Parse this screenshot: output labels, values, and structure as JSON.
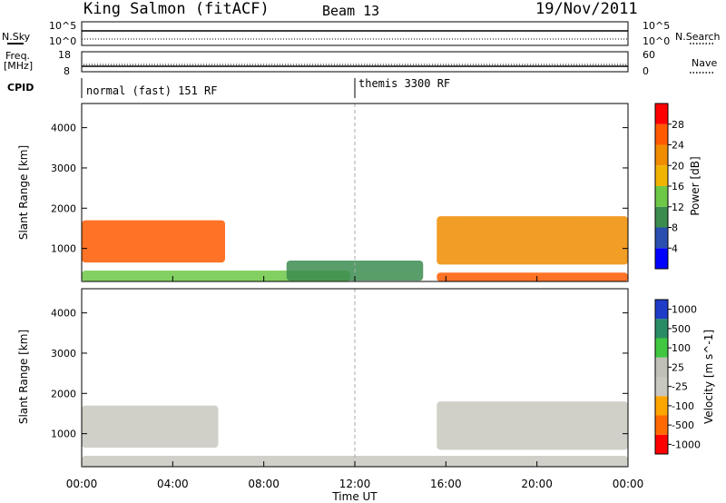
{
  "header": {
    "station": "King Salmon (fitACF)",
    "beam": "Beam 13",
    "date": "19/Nov/2011"
  },
  "panels": {
    "nsky": {
      "left_label": "N.Sky",
      "right_label": "N.Search",
      "left_ticks": [
        "10^5",
        "10^0"
      ],
      "right_ticks": [
        "10^5",
        "10^0"
      ]
    },
    "freq": {
      "left_label_1": "Freq.",
      "left_label_2": "[MHz]",
      "left_ticks": [
        "18",
        "8"
      ],
      "right_label": "Nave",
      "right_ticks": [
        "60",
        "0"
      ]
    },
    "cpid": {
      "label": "CPID",
      "modes": [
        "normal (fast) 151 RF",
        "themis 3300 RF"
      ]
    }
  },
  "colors": {
    "power_scale": [
      "#0000ff",
      "#2a4fb0",
      "#3c8c50",
      "#6dc846",
      "#f0b400",
      "#f08c00",
      "#ff5a00",
      "#ff0000"
    ],
    "velocity_scale": [
      "#ff0000",
      "#ff6a00",
      "#ffa500",
      "#c8c8c0",
      "#c0c0b8",
      "#40c840",
      "#2a8c64",
      "#1e3cc8"
    ],
    "ground_scatter": "#c8c8c0"
  },
  "chart_data": [
    {
      "type": "heatmap",
      "title": "",
      "xlabel": "",
      "ylabel": "Slant Range [km]",
      "quantity": "Power",
      "colorbar_label": "Power [dB]",
      "colorbar_ticks": [
        "28",
        "24",
        "20",
        "16",
        "12",
        "8",
        "4"
      ],
      "crange": [
        0,
        32
      ],
      "xlim": [
        "00:00",
        "24:00"
      ],
      "ylim": [
        180,
        4600
      ],
      "yticks": [
        "4000",
        "3000",
        "2000",
        "1000"
      ],
      "regions": [
        {
          "t_start": 0.0,
          "t_end": 6.3,
          "r_start": 650,
          "r_end": 1700,
          "level_db": 24
        },
        {
          "t_start": 0.0,
          "t_end": 11.8,
          "r_start": 180,
          "r_end": 450,
          "level_db": 14
        },
        {
          "t_start": 15.6,
          "t_end": 24.0,
          "r_start": 600,
          "r_end": 1800,
          "level_db": 22
        },
        {
          "t_start": 15.6,
          "t_end": 24.0,
          "r_start": 180,
          "r_end": 400,
          "level_db": 26
        },
        {
          "t_start": 9.0,
          "t_end": 15.0,
          "r_start": 200,
          "r_end": 700,
          "level_db": 8
        }
      ]
    },
    {
      "type": "heatmap",
      "title": "",
      "xlabel": "Time UT",
      "ylabel": "Slant Range [km]",
      "quantity": "Velocity",
      "colorbar_label": "Velocity [m s^-1]",
      "colorbar_ticks": [
        "1000",
        "500",
        "100",
        "25",
        "-25",
        "-100",
        "-500",
        "-1000"
      ],
      "crange": [
        -1000,
        1000
      ],
      "xlim": [
        "00:00",
        "24:00"
      ],
      "ylim": [
        180,
        4600
      ],
      "xticks": [
        "00:00",
        "04:00",
        "08:00",
        "12:00",
        "16:00",
        "20:00",
        "00:00"
      ],
      "yticks": [
        "4000",
        "3000",
        "2000",
        "1000"
      ],
      "regions": [
        {
          "t_start": 0.0,
          "t_end": 6.0,
          "r_start": 650,
          "r_end": 1700,
          "velocity": 0
        },
        {
          "t_start": 15.6,
          "t_end": 24.0,
          "r_start": 600,
          "r_end": 1800,
          "velocity": 0
        },
        {
          "t_start": 0.0,
          "t_end": 24.0,
          "r_start": 180,
          "r_end": 450,
          "velocity": 10
        }
      ]
    }
  ]
}
